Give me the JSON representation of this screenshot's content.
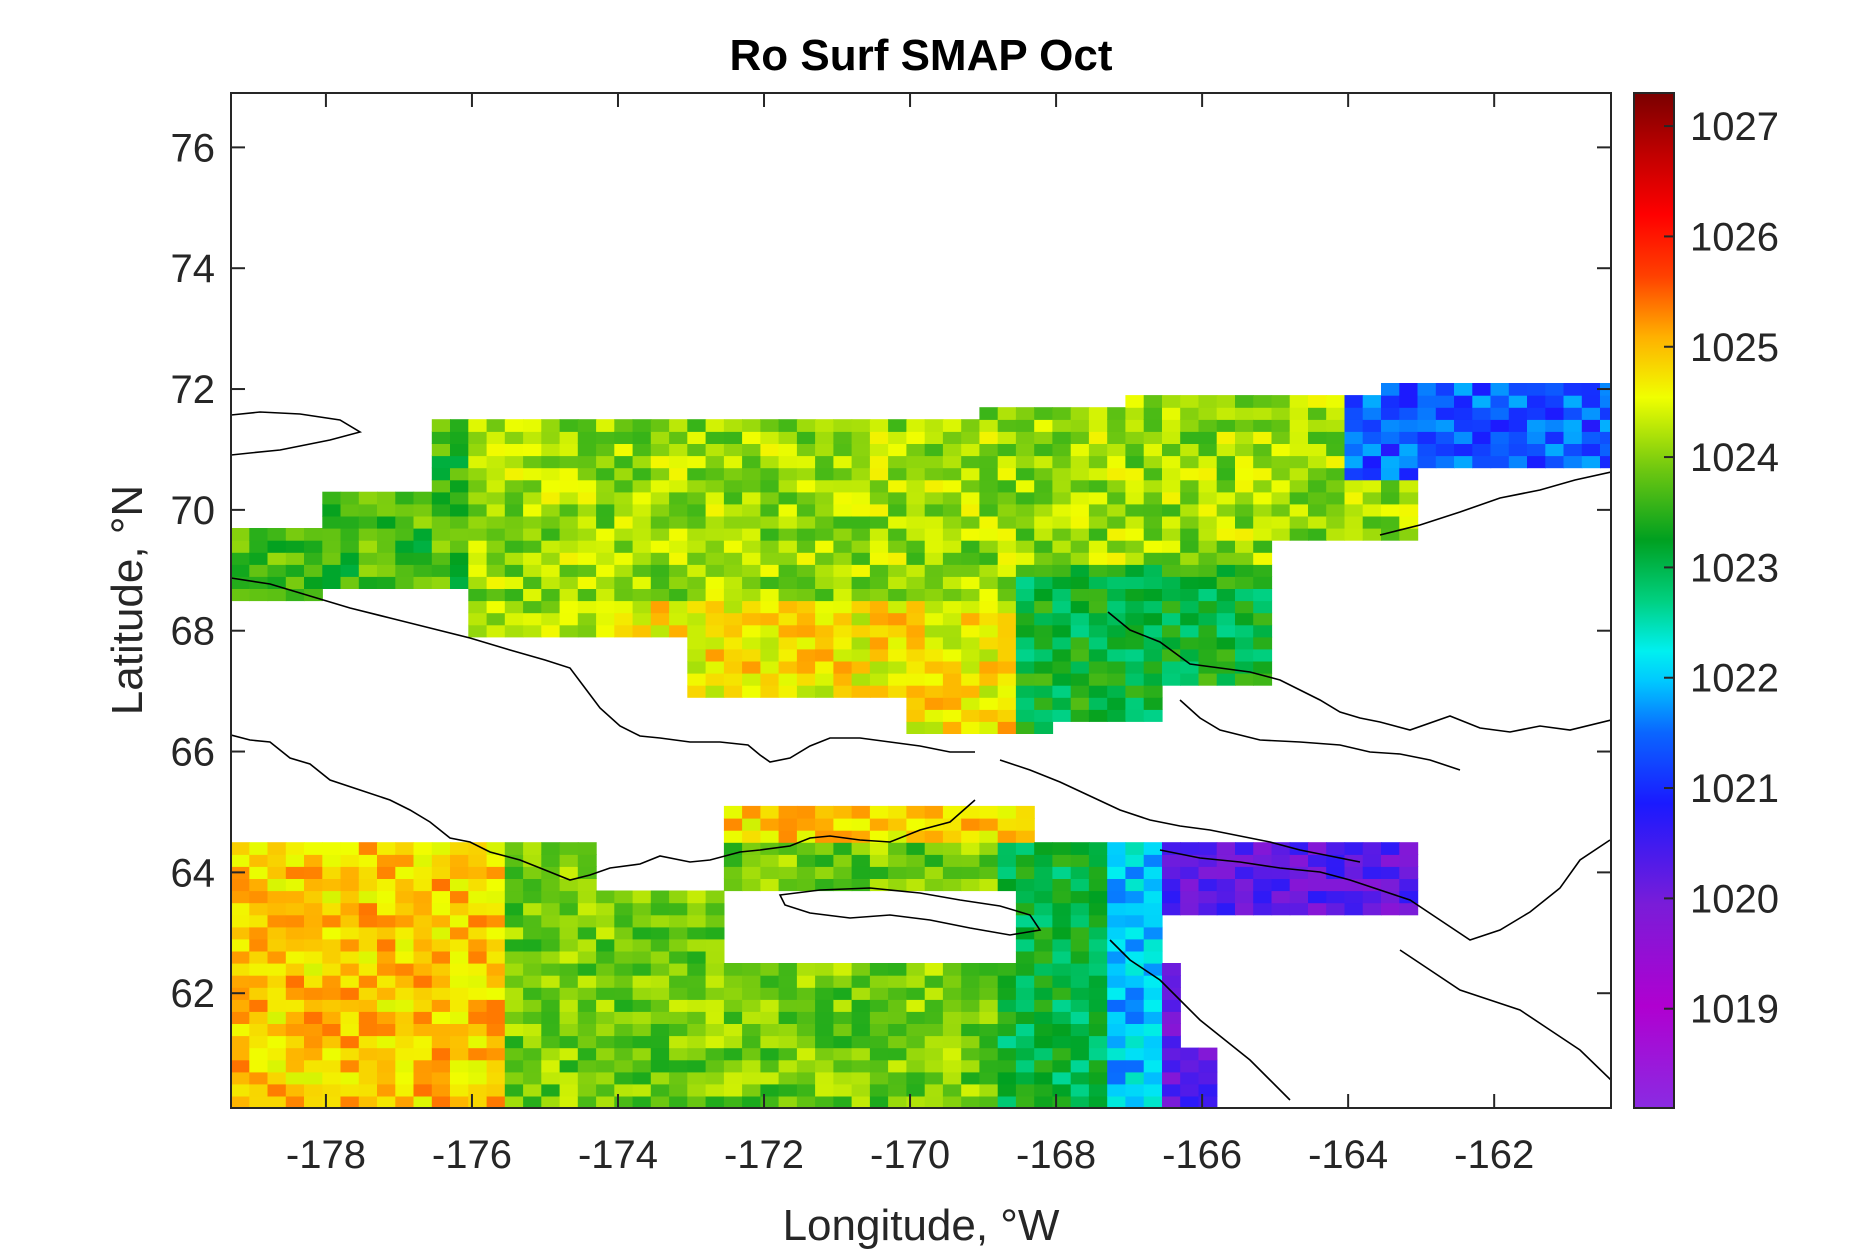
{
  "chart_data": {
    "type": "heatmap",
    "title": "Ro Surf SMAP Oct",
    "xlabel": "Longitude, °W",
    "ylabel": "Latitude, °N",
    "xlim": [
      -179.3,
      -160.4
    ],
    "ylim": [
      60.1,
      76.9
    ],
    "xticks": [
      -178,
      -176,
      -174,
      -172,
      -170,
      -168,
      -166,
      -164,
      -162
    ],
    "xtick_labels": [
      "-178",
      "-176",
      "-174",
      "-172",
      "-170",
      "-168",
      "-166",
      "-164",
      "-162"
    ],
    "yticks": [
      62,
      64,
      66,
      68,
      70,
      72,
      74,
      76
    ],
    "ytick_labels": [
      "62",
      "64",
      "66",
      "68",
      "70",
      "72",
      "74",
      "76"
    ],
    "grid": false,
    "colormap": "jet-like (purple-blue-cyan-green-yellow-red-darkred)",
    "colorbar": {
      "location": "right",
      "range": [
        1018.1,
        1027.3
      ],
      "ticks": [
        1019,
        1020,
        1021,
        1022,
        1023,
        1024,
        1025,
        1026,
        1027
      ],
      "tick_labels": [
        "1019",
        "1020",
        "1021",
        "1022",
        "1023",
        "1024",
        "1025",
        "1026",
        "1027"
      ]
    },
    "value_regions": [
      {
        "region": "northern Chukchi Sea 69–71.6°N",
        "typical_value": 1024.1
      },
      {
        "region": "Bering Sea south of 64.5°N, west",
        "typical_value": 1024.9
      },
      {
        "region": "Bering Sea south of 64.5°N, central",
        "typical_value": 1023.7
      },
      {
        "region": "near Alaska coast east of -168",
        "typical_value": 1021.5
      },
      {
        "region": "Norton Sound area",
        "typical_value": 1020.0
      },
      {
        "region": "Beaufort edge near -163 to -160.5, 72°N",
        "typical_value": 1021.3
      }
    ]
  }
}
